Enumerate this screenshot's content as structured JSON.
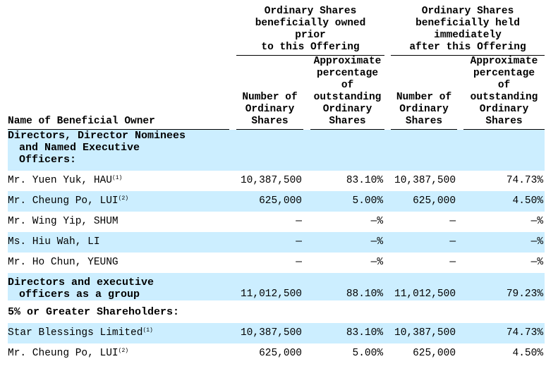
{
  "header": {
    "group_prior": [
      "Ordinary Shares",
      "beneficially owned",
      "prior",
      "to this Offering"
    ],
    "group_after": [
      "Ordinary Shares",
      "beneficially held",
      "immediately",
      "after this Offering"
    ],
    "name_col": "Name of Beneficial Owner",
    "number_col": [
      "Number of",
      "Ordinary",
      "Shares"
    ],
    "pct_col": [
      "Approximate",
      "percentage",
      "of",
      "outstanding",
      "Ordinary",
      "Shares"
    ]
  },
  "sections": {
    "directors_title": [
      "Directors, Director Nominees",
      "and Named  Executive",
      "Officers:"
    ],
    "group_total": {
      "name": [
        "Directors and executive",
        "officers as a group"
      ],
      "values": [
        "11,012,500",
        "88.10%",
        "11,012,500",
        "79.23%"
      ]
    },
    "shareholders_title": "5% or Greater Shareholders:"
  },
  "directors": [
    {
      "name": "Mr.  Yuen Yuk, HAU",
      "note": "(1)",
      "values": [
        "10,387,500",
        "83.10%",
        "10,387,500",
        "74.73%"
      ]
    },
    {
      "name": "Mr.  Cheung Po, LUI",
      "note": "(2)",
      "values": [
        "625,000",
        "5.00%",
        "625,000",
        "4.50%"
      ]
    },
    {
      "name": "Mr. Wing Yip, SHUM",
      "note": "",
      "values": [
        "—",
        "—%",
        "—",
        "—%"
      ]
    },
    {
      "name": "Ms. Hiu Wah, LI",
      "note": "",
      "values": [
        "—",
        "—%",
        "—",
        "—%"
      ]
    },
    {
      "name": "Mr. Ho Chun, YEUNG",
      "note": "",
      "values": [
        "—",
        "—%",
        "—",
        "—%"
      ]
    }
  ],
  "shareholders": [
    {
      "name": "Star Blessings Limited",
      "note": "(1)",
      "values": [
        "10,387,500",
        "83.10%",
        "10,387,500",
        "74.73%"
      ]
    },
    {
      "name": "Mr.  Cheung Po, LUI",
      "note": "(2)",
      "values": [
        "625,000",
        "5.00%",
        "625,000",
        "4.50%"
      ]
    }
  ],
  "colors": {
    "row_highlight": "#cceeff"
  }
}
